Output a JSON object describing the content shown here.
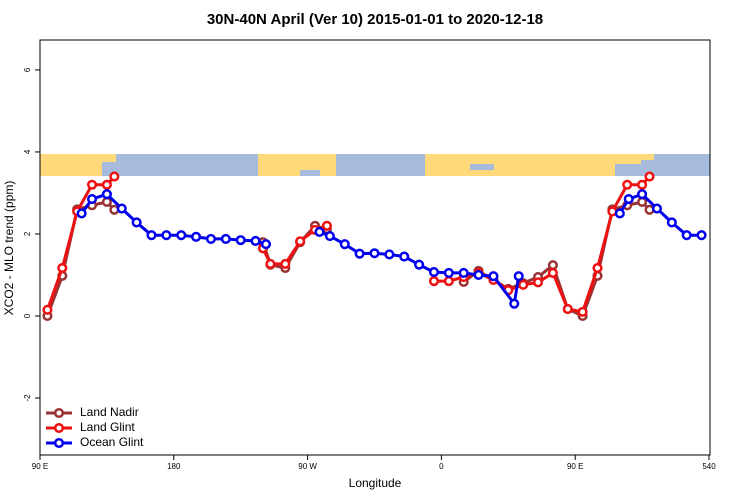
{
  "chart_data": {
    "type": "line",
    "title": "30N-40N April (Ver 10)   2015-01-01 to 2020-12-18",
    "x_label": "Longitude",
    "y_label": "XCO2 - MLO trend (ppm)",
    "xlim": [
      90,
      540
    ],
    "ylim": [
      -3.39,
      6.73
    ],
    "xticks": [
      {
        "value": 90,
        "label": "90 E"
      },
      180,
      {
        "value": 270,
        "label": "90 W"
      },
      {
        "value": 360,
        "label": "0"
      },
      {
        "value": 450,
        "label": "90 E"
      },
      540
    ],
    "yticks": [
      -2,
      0,
      2,
      4,
      6
    ],
    "legend": "bottom-left",
    "series": [
      {
        "name": "Land Nadir",
        "color": "#993333",
        "x": [
          95,
          105,
          115,
          125,
          135,
          140,
          190,
          240,
          245,
          255,
          265,
          275,
          283,
          330,
          375,
          385,
          405,
          415,
          425,
          435,
          445,
          455,
          465,
          475,
          485,
          495,
          500
        ],
        "values": [
          0.0,
          0.98,
          2.6,
          2.7,
          2.78,
          2.59,
          null,
          1.8,
          1.25,
          1.17,
          1.8,
          2.2,
          2.12,
          null,
          0.83,
          1.1,
          0.66,
          0.8,
          0.95,
          1.24,
          0.17,
          0.0,
          0.98,
          2.6,
          2.7,
          2.78,
          2.59
        ]
      },
      {
        "name": "Land Glint",
        "color": "#ee1111",
        "x": [
          95,
          105,
          115,
          125,
          135,
          140,
          190,
          240,
          245,
          255,
          265,
          275,
          283,
          320,
          355,
          365,
          375,
          385,
          395,
          405,
          415,
          425,
          435,
          445,
          455,
          465,
          475,
          485,
          495,
          500
        ],
        "values": [
          0.15,
          1.17,
          2.55,
          3.2,
          3.2,
          3.4,
          null,
          1.65,
          1.27,
          1.27,
          1.82,
          2.1,
          2.2,
          null,
          0.85,
          0.85,
          0.95,
          1.05,
          0.88,
          0.63,
          0.76,
          0.82,
          1.05,
          0.17,
          0.1,
          1.17,
          2.55,
          3.2,
          3.2,
          3.4
        ]
      },
      {
        "name": "Ocean Glint",
        "color": "#0000ee",
        "x": [
          118,
          125,
          135,
          145,
          155,
          165,
          175,
          185,
          195,
          205,
          215,
          225,
          235,
          242,
          260,
          278,
          285,
          295,
          305,
          315,
          325,
          335,
          345,
          355,
          365,
          375,
          385,
          395,
          409,
          412,
          450,
          480,
          486,
          495,
          505,
          515,
          525,
          535
        ],
        "values": [
          2.5,
          2.85,
          2.97,
          2.62,
          2.28,
          1.97,
          1.97,
          1.97,
          1.93,
          1.88,
          1.88,
          1.85,
          1.83,
          1.75,
          null,
          2.05,
          1.95,
          1.75,
          1.52,
          1.53,
          1.5,
          1.45,
          1.25,
          1.07,
          1.05,
          1.05,
          1.0,
          0.97,
          0.3,
          0.97,
          null,
          2.5,
          2.85,
          2.97,
          2.62,
          2.28,
          1.97,
          1.97
        ]
      }
    ]
  }
}
